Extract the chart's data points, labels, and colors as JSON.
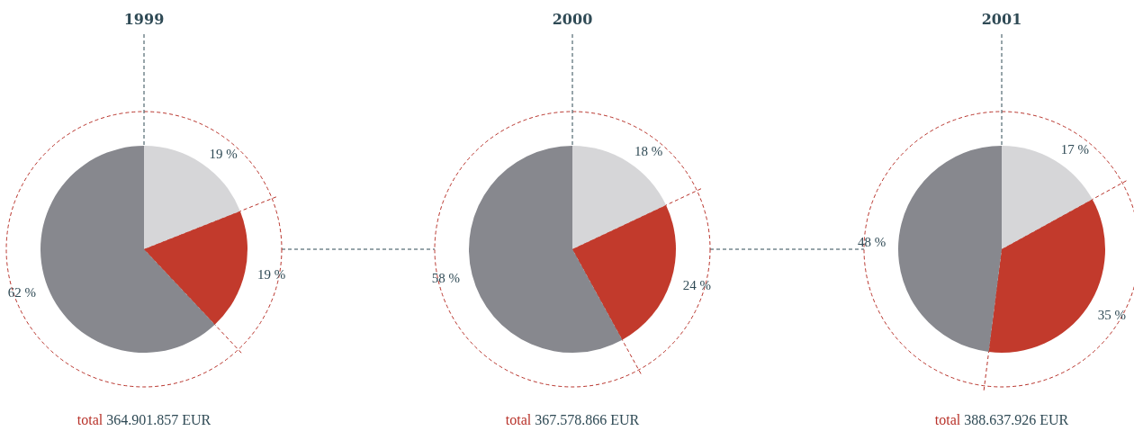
{
  "chart_data": [
    {
      "type": "pie",
      "title": "1999",
      "categories": [
        null,
        null,
        null
      ],
      "values": [
        19,
        19,
        62
      ],
      "colors": [
        "#d6d6d8",
        "#c23a2c",
        "#87888e"
      ],
      "value_labels": [
        "19 %",
        "19 %",
        "62 %"
      ],
      "annotations": [
        "total 364.901.857 EUR"
      ]
    },
    {
      "type": "pie",
      "title": "2000",
      "categories": [
        null,
        null,
        null
      ],
      "values": [
        18,
        24,
        58
      ],
      "colors": [
        "#d6d6d8",
        "#c23a2c",
        "#87888e"
      ],
      "value_labels": [
        "18 %",
        "24 %",
        "58 %"
      ],
      "annotations": [
        "total 367.578.866 EUR"
      ]
    },
    {
      "type": "pie",
      "title": "2001",
      "categories": [
        null,
        null,
        null
      ],
      "values": [
        17,
        35,
        48
      ],
      "colors": [
        "#d6d6d8",
        "#c23a2c",
        "#87888e"
      ],
      "value_labels": [
        "17 %",
        "35 %",
        "48 %"
      ],
      "annotations": [
        "total 388.637.926 EUR"
      ]
    }
  ]
}
